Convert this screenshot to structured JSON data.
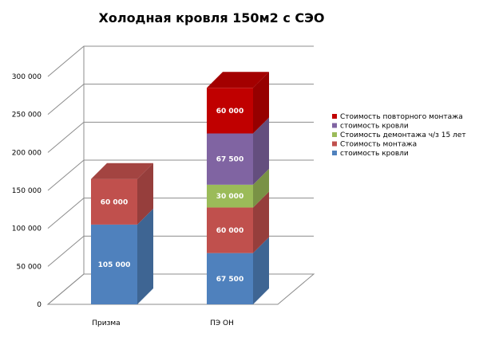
{
  "chart_data": {
    "type": "bar",
    "stacked": true,
    "three_d": true,
    "title": "Холодная кровля 150м2 с СЭО",
    "xlabel": "",
    "ylabel": "",
    "categories": [
      "Призма",
      "ПЭ ОН"
    ],
    "ylim": [
      0,
      300000
    ],
    "y_ticks": [
      {
        "value": 0,
        "label": "0"
      },
      {
        "value": 50000,
        "label": "50 000"
      },
      {
        "value": 100000,
        "label": "100 000"
      },
      {
        "value": 150000,
        "label": "150 000"
      },
      {
        "value": 200000,
        "label": "200 000"
      },
      {
        "value": 250000,
        "label": "250 000"
      },
      {
        "value": 300000,
        "label": "300 000"
      }
    ],
    "grid": true,
    "legend_position": "right",
    "series": [
      {
        "name": "стоимость кровли",
        "color": "#4f81bd",
        "values": [
          105000,
          67500
        ],
        "labels": [
          "105 000",
          "67 500"
        ]
      },
      {
        "name": "Стоимость монтажа",
        "color": "#c0504d",
        "values": [
          60000,
          60000
        ],
        "labels": [
          "60 000",
          "60 000"
        ]
      },
      {
        "name": "Стоимость демонтажа ч/з 15 лет",
        "color": "#9bbb59",
        "values": [
          0,
          30000
        ],
        "labels": [
          "",
          "30 000"
        ]
      },
      {
        "name": "стоимость кровли",
        "color": "#8064a2",
        "values": [
          0,
          67500
        ],
        "labels": [
          "",
          "67 500"
        ]
      },
      {
        "name": "Стоимость повторного монтажа",
        "color": "#c00000",
        "values": [
          0,
          60000
        ],
        "labels": [
          "",
          "60 000"
        ]
      }
    ]
  }
}
